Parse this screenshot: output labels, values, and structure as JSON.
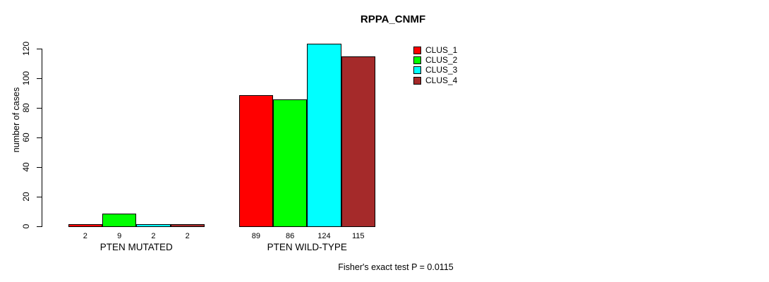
{
  "chart_data": {
    "type": "bar",
    "title": "RPPA_CNMF",
    "ylabel": "number of cases",
    "xlabel": "",
    "groups": [
      "PTEN MUTATED",
      "PTEN WILD-TYPE"
    ],
    "series": [
      {
        "name": "CLUS_1",
        "color": "#FF0000",
        "values": [
          2,
          89
        ]
      },
      {
        "name": "CLUS_2",
        "color": "#00FF00",
        "values": [
          9,
          86
        ]
      },
      {
        "name": "CLUS_3",
        "color": "#00FFFF",
        "values": [
          2,
          124
        ]
      },
      {
        "name": "CLUS_4",
        "color": "#A52A2A",
        "values": [
          2,
          115
        ]
      }
    ],
    "yticks": [
      0,
      20,
      40,
      60,
      80,
      100,
      120
    ],
    "ylim": [
      0,
      124
    ],
    "grid": false,
    "bar_value_labels_shown": true,
    "legend_position": "top-right",
    "legend_entries": [
      "CLUS_1",
      "CLUS_2",
      "CLUS_3",
      "CLUS_4"
    ],
    "annotation": "Fisher's exact test P = 0.0115"
  }
}
